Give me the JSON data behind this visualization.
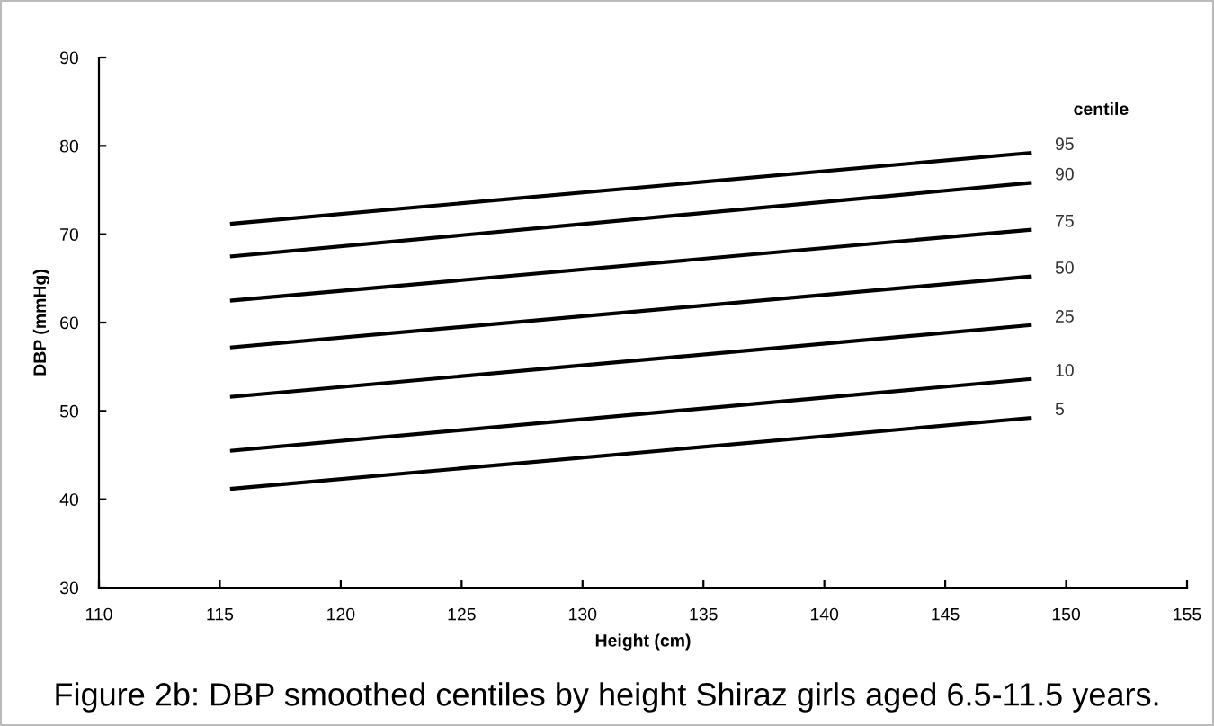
{
  "chart_data": {
    "type": "line",
    "xlabel": "Height (cm)",
    "ylabel": "DBP (mmHg)",
    "legend_title": "centile",
    "xlim": [
      110,
      155
    ],
    "xticks": [
      110,
      115,
      120,
      125,
      130,
      135,
      140,
      145,
      150,
      155
    ],
    "ylim": [
      30,
      90
    ],
    "yticks": [
      30,
      40,
      50,
      60,
      70,
      80,
      90
    ],
    "x": [
      115.5,
      148.5
    ],
    "grid": false,
    "legend": false,
    "marker": "none",
    "line_style": "solid",
    "series": [
      {
        "name": "95",
        "color": "#000000",
        "values": [
          71.2,
          79.2
        ]
      },
      {
        "name": "90",
        "color": "#000000",
        "values": [
          67.5,
          75.8
        ]
      },
      {
        "name": "75",
        "color": "#000000",
        "values": [
          62.5,
          70.5
        ]
      },
      {
        "name": "50",
        "color": "#000000",
        "values": [
          57.2,
          65.2
        ]
      },
      {
        "name": "25",
        "color": "#000000",
        "values": [
          51.6,
          59.7
        ]
      },
      {
        "name": "10",
        "color": "#000000",
        "values": [
          45.5,
          53.6
        ]
      },
      {
        "name": "5",
        "color": "#000000",
        "values": [
          41.2,
          49.2
        ]
      }
    ],
    "annotations": [
      "Figure 2b: DBP smoothed centiles by height Shiraz girls aged 6.5-11.5 years."
    ]
  }
}
